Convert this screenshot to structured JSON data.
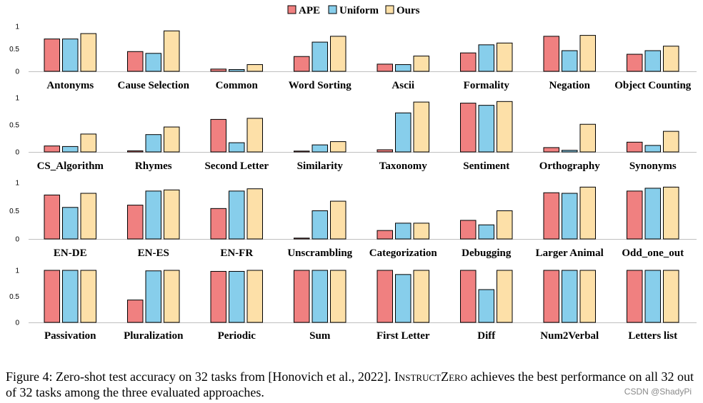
{
  "legend": {
    "items": [
      {
        "label": "APE",
        "color": "#f08080"
      },
      {
        "label": "Uniform",
        "color": "#87ceeb"
      },
      {
        "label": "Ours",
        "color": "#fde0a8"
      }
    ]
  },
  "chart_data": [
    {
      "type": "bar",
      "categories": [
        "Antonyms",
        "Cause Selection",
        "Common",
        "Word Sorting",
        "Ascii",
        "Formality",
        "Negation",
        "Object Counting"
      ],
      "series": [
        {
          "name": "APE",
          "values": [
            0.72,
            0.44,
            0.05,
            0.33,
            0.16,
            0.41,
            0.78,
            0.38
          ]
        },
        {
          "name": "Uniform",
          "values": [
            0.72,
            0.4,
            0.04,
            0.65,
            0.15,
            0.59,
            0.46,
            0.46
          ]
        },
        {
          "name": "Ours",
          "values": [
            0.84,
            0.9,
            0.15,
            0.78,
            0.34,
            0.63,
            0.8,
            0.56
          ]
        }
      ],
      "yticks": [
        "0",
        "0.5",
        "1"
      ],
      "ylim": [
        0,
        1
      ]
    },
    {
      "type": "bar",
      "categories": [
        "CS_Algorithm",
        "Rhymes",
        "Second Letter",
        "Similarity",
        "Taxonomy",
        "Sentiment",
        "Orthography",
        "Synonyms"
      ],
      "series": [
        {
          "name": "APE",
          "values": [
            0.11,
            0.02,
            0.6,
            0.0,
            0.04,
            0.9,
            0.08,
            0.18
          ]
        },
        {
          "name": "Uniform",
          "values": [
            0.1,
            0.32,
            0.17,
            0.13,
            0.72,
            0.86,
            0.03,
            0.12
          ]
        },
        {
          "name": "Ours",
          "values": [
            0.33,
            0.46,
            0.62,
            0.19,
            0.92,
            0.93,
            0.51,
            0.38
          ]
        }
      ],
      "yticks": [
        "0",
        "0.5",
        "1"
      ],
      "ylim": [
        0,
        1
      ]
    },
    {
      "type": "bar",
      "categories": [
        "EN-DE",
        "EN-ES",
        "EN-FR",
        "Unscrambling",
        "Categorization",
        "Debugging",
        "Larger Animal",
        "Odd_one_out"
      ],
      "series": [
        {
          "name": "APE",
          "values": [
            0.78,
            0.6,
            0.54,
            0.01,
            0.15,
            0.33,
            0.82,
            0.85
          ]
        },
        {
          "name": "Uniform",
          "values": [
            0.56,
            0.85,
            0.85,
            0.5,
            0.28,
            0.25,
            0.81,
            0.9
          ]
        },
        {
          "name": "Ours",
          "values": [
            0.81,
            0.87,
            0.89,
            0.67,
            0.28,
            0.5,
            0.92,
            0.92
          ]
        }
      ],
      "yticks": [
        "0",
        "0.5",
        "1"
      ],
      "ylim": [
        0,
        1
      ]
    },
    {
      "type": "bar",
      "categories": [
        "Passivation",
        "Pluralization",
        "Periodic",
        "Sum",
        "First Letter",
        "Diff",
        "Num2Verbal",
        "Letters list"
      ],
      "series": [
        {
          "name": "APE",
          "values": [
            1.0,
            0.43,
            0.98,
            1.0,
            1.0,
            1.0,
            1.0,
            1.0
          ]
        },
        {
          "name": "Uniform",
          "values": [
            1.0,
            0.99,
            0.98,
            1.0,
            0.92,
            0.63,
            1.0,
            1.0
          ]
        },
        {
          "name": "Ours",
          "values": [
            1.0,
            1.0,
            1.0,
            1.0,
            1.0,
            1.0,
            1.0,
            1.0
          ]
        }
      ],
      "yticks": [
        "0",
        "0.5",
        "1"
      ],
      "ylim": [
        0,
        1
      ]
    }
  ],
  "caption": {
    "prefix": "Figure 4:   Zero-shot test accuracy on 32 tasks from [Honovich et al., 2022].  ",
    "name": "InstructZero",
    "suffix": " achieves the best performance on all 32 out of 32 tasks among the three evaluated approaches."
  },
  "watermark": "CSDN @ShadyPi"
}
